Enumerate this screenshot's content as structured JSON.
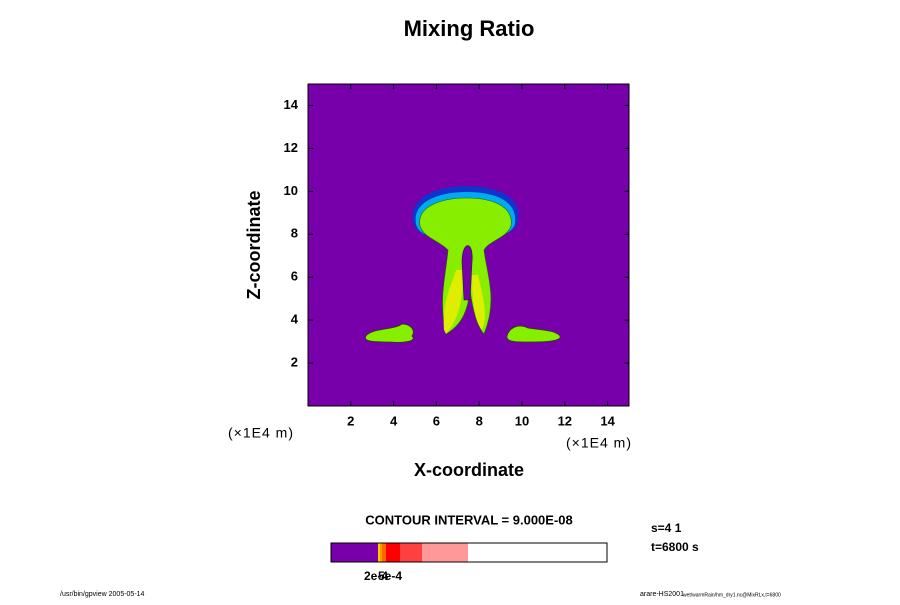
{
  "chart_data": {
    "type": "contour",
    "title": "Mixing Ratio",
    "xlabel": "X-coordinate",
    "ylabel": "Z-coordinate",
    "x_unit": "(×1E4 m)",
    "y_unit": "(×1E4 m)",
    "xlim": [
      0,
      15
    ],
    "ylim": [
      0,
      15
    ],
    "xticks": [
      2,
      4,
      6,
      8,
      10,
      12,
      14
    ],
    "yticks": [
      2,
      4,
      6,
      8,
      10,
      12,
      14
    ],
    "contour_interval": "CONTOUR INTERVAL = 9.000E-08",
    "colorbar_labels": [
      "2e-4",
      "5e-4"
    ],
    "colorbar_colors": [
      "#7700aa",
      "#ffcc00",
      "#ff9900",
      "#ff6600",
      "#ff0000",
      "#ff4040",
      "#ff9999"
    ],
    "background_color": "#7700aa",
    "info": [
      "s=4 1",
      "t=6800 s"
    ],
    "footer_left": "/usr/bin/gpview 2005-05-14",
    "footer_right": "arare-HS2001",
    "footer_right_small": "wet/warmRain/hm_dry1.nc@MixRt,x,t=6800"
  }
}
